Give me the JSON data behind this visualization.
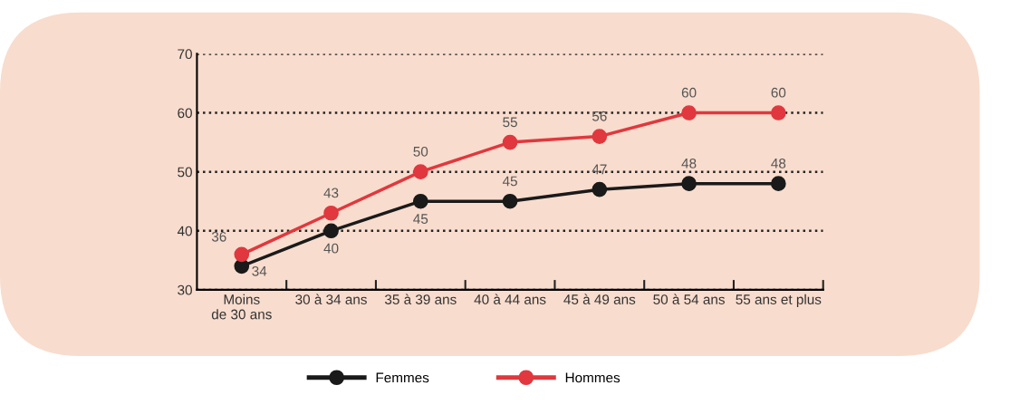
{
  "chart_data": {
    "type": "line",
    "categories": [
      "Moins\nde 30 ans",
      "30 à 34 ans",
      "35 à 39 ans",
      "40 à 44 ans",
      "45 à 49 ans",
      "50 à 54 ans",
      "55 ans et plus"
    ],
    "series": [
      {
        "name": "Femmes",
        "color": "#1a1a1a",
        "values": [
          34,
          40,
          45,
          45,
          47,
          48,
          48
        ]
      },
      {
        "name": "Hommes",
        "color": "#e0383e",
        "values": [
          36,
          43,
          50,
          55,
          56,
          60,
          60
        ]
      }
    ],
    "ylim": [
      30,
      70
    ],
    "yticks": [
      30,
      40,
      50,
      60,
      70
    ],
    "grid": "y",
    "legend": "bottom",
    "marker": "circle",
    "line_style": "solid",
    "data_labels": true
  }
}
